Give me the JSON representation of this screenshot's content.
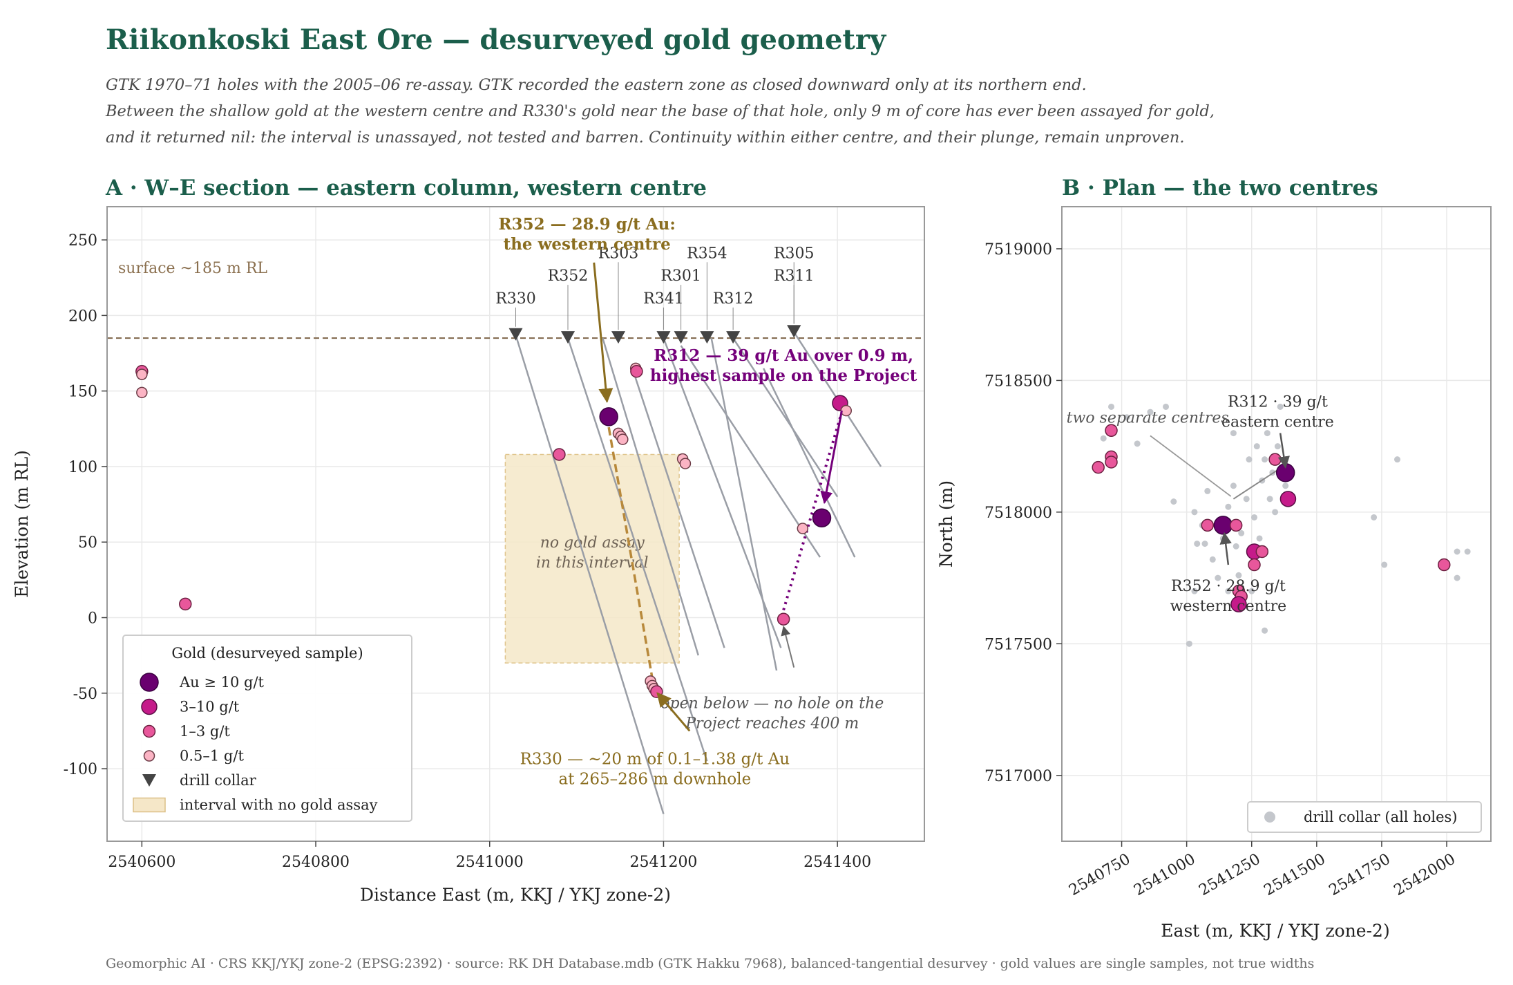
{
  "title": "Riikonkoski East Ore — desurveyed gold geometry",
  "subtitle_lines": [
    "GTK 1970–71 holes with the 2005–06 re-assay. GTK recorded the eastern zone as closed downward only at its northern end.",
    "Between the shallow gold at the western centre and R330's gold near the base of that hole, only 9 m of core has ever been assayed for gold,",
    "and it returned nil: the interval is unassayed, not tested and barren. Continuity within either centre, and their plunge, remain unproven."
  ],
  "footer": "Geomorphic AI · CRS KKJ/YKJ zone-2 (EPSG:2392) · source: RK DH Database.mdb (GTK Hakku 7968), balanced-tangential desurvey · gold values are single samples, not true widths",
  "colors": {
    "title": "#1b5e4b",
    "au_ge10": "#6a006f",
    "au_3_10": "#c51b8a",
    "au_1_3": "#e8579b",
    "au_05_1": "#fbb4c4",
    "collar": "#444444",
    "trace": "#9a9ea6",
    "western_annot": "#8a6d1f",
    "eastern_annot": "#74007a",
    "gap_fill": "#f5e7c8",
    "surface": "#7d6447",
    "grey_collar": "#c4c7cc"
  },
  "chart_data": [
    {
      "type": "scatter",
      "panel_title": "A · W–E section — eastern column, western centre",
      "xlabel": "Distance East (m, KKJ / YKJ zone-2)",
      "ylabel": "Elevation (m RL)",
      "xlim": [
        2540560,
        2541500
      ],
      "ylim": [
        -148,
        272
      ],
      "xticks": [
        2540600,
        2540800,
        2541000,
        2541200,
        2541400
      ],
      "yticks": [
        -100,
        -50,
        0,
        50,
        100,
        150,
        200,
        250
      ],
      "grid": true,
      "surface": {
        "elevation": 185,
        "label": "surface ~185 m RL"
      },
      "no_assay_box": {
        "x": [
          2541018,
          2541218
        ],
        "y": [
          -30,
          108
        ],
        "label_lines": [
          "no gold assay",
          "in this interval"
        ]
      },
      "collars": [
        {
          "hole": "R330",
          "x": 2541030,
          "elev": 187,
          "label_elev": 208
        },
        {
          "hole": "R352",
          "x": 2541090,
          "elev": 185,
          "label_elev": 223
        },
        {
          "hole": "R303",
          "x": 2541148,
          "elev": 185,
          "label_elev": 238
        },
        {
          "hole": "R341",
          "x": 2541200,
          "elev": 185,
          "label_elev": 208
        },
        {
          "hole": "R301",
          "x": 2541220,
          "elev": 185,
          "label_elev": 223
        },
        {
          "hole": "R354",
          "x": 2541250,
          "elev": 185,
          "label_elev": 238
        },
        {
          "hole": "R312",
          "x": 2541280,
          "elev": 185,
          "label_elev": 208
        },
        {
          "hole": "R305",
          "x": 2541350,
          "elev": 189,
          "label_elev": 238
        },
        {
          "hole": "R311",
          "x": 2541350,
          "elev": 189,
          "label_elev": 223
        }
      ],
      "traces": [
        [
          [
            2541030,
            187
          ],
          [
            2541200,
            -130
          ]
        ],
        [
          [
            2541090,
            185
          ],
          [
            2541250,
            -95
          ]
        ],
        [
          [
            2541130,
            185
          ],
          [
            2541240,
            -25
          ]
        ],
        [
          [
            2541167,
            160
          ],
          [
            2541270,
            -20
          ]
        ],
        [
          [
            2541200,
            185
          ],
          [
            2541335,
            -20
          ]
        ],
        [
          [
            2541220,
            180
          ],
          [
            2541380,
            40
          ]
        ],
        [
          [
            2541255,
            185
          ],
          [
            2541330,
            -35
          ]
        ],
        [
          [
            2541280,
            185
          ],
          [
            2541400,
            80
          ]
        ],
        [
          [
            2541350,
            189
          ],
          [
            2541450,
            100
          ]
        ],
        [
          [
            2541315,
            165
          ],
          [
            2541420,
            40
          ]
        ]
      ],
      "samples": [
        {
          "x": 2540600,
          "elev": 163,
          "au_class": "1–3 g/t"
        },
        {
          "x": 2540600,
          "elev": 161,
          "au_class": "0.5–1 g/t"
        },
        {
          "x": 2540600,
          "elev": 149,
          "au_class": "0.5–1 g/t"
        },
        {
          "x": 2540650,
          "elev": 9,
          "au_class": "1–3 g/t"
        },
        {
          "x": 2541080,
          "elev": 108,
          "au_class": "1–3 g/t"
        },
        {
          "x": 2541137,
          "elev": 133,
          "au_class": "Au ≥ 10 g/t"
        },
        {
          "x": 2541148,
          "elev": 122,
          "au_class": "0.5–1 g/t"
        },
        {
          "x": 2541151,
          "elev": 120,
          "au_class": "0.5–1 g/t"
        },
        {
          "x": 2541153,
          "elev": 118,
          "au_class": "0.5–1 g/t"
        },
        {
          "x": 2541168,
          "elev": 165,
          "au_class": "0.5–1 g/t"
        },
        {
          "x": 2541169,
          "elev": 163,
          "au_class": "1–3 g/t"
        },
        {
          "x": 2541222,
          "elev": 105,
          "au_class": "0.5–1 g/t"
        },
        {
          "x": 2541225,
          "elev": 102,
          "au_class": "0.5–1 g/t"
        },
        {
          "x": 2541185,
          "elev": -42,
          "au_class": "0.5–1 g/t"
        },
        {
          "x": 2541187,
          "elev": -45,
          "au_class": "0.5–1 g/t"
        },
        {
          "x": 2541189,
          "elev": -47,
          "au_class": "0.5–1 g/t"
        },
        {
          "x": 2541192,
          "elev": -49,
          "au_class": "1–3 g/t"
        },
        {
          "x": 2541360,
          "elev": 59,
          "au_class": "0.5–1 g/t"
        },
        {
          "x": 2541382,
          "elev": 66,
          "au_class": "Au ≥ 10 g/t"
        },
        {
          "x": 2541338,
          "elev": -1,
          "au_class": "1–3 g/t"
        },
        {
          "x": 2541403,
          "elev": 142,
          "au_class": "3–10 g/t"
        },
        {
          "x": 2541410,
          "elev": 137,
          "au_class": "0.5–1 g/t"
        }
      ],
      "annotations": [
        {
          "lines": [
            "R352 — 28.9 g/t Au:",
            "the western centre"
          ],
          "color": "western_annot",
          "bold": true,
          "x": 2541112,
          "elev": 257
        },
        {
          "lines": [
            "R312 — 39 g/t Au over 0.9 m,",
            "highest sample on the Project"
          ],
          "color": "eastern_annot",
          "bold": true,
          "x": 2541338,
          "elev": 170
        },
        {
          "lines": [
            "open below — no hole on the",
            "Project reaches 400 m"
          ],
          "color": "grey_italic",
          "italic": true,
          "x": 2541325,
          "elev": -60
        },
        {
          "lines": [
            "R330 — ~20 m of 0.1–1.38 g/t Au",
            "at 265–286 m downhole"
          ],
          "color": "western_annot",
          "x": 2541190,
          "elev": -97
        }
      ],
      "legend": {
        "title": "Gold (desurveyed sample)",
        "position": "lower-left",
        "entries": [
          "Au ≥ 10 g/t",
          "3–10 g/t",
          "1–3 g/t",
          "0.5–1 g/t",
          "drill collar",
          "interval with no gold assay"
        ]
      }
    },
    {
      "type": "scatter",
      "panel_title": "B · Plan — the two centres",
      "xlabel": "East (m, KKJ / YKJ zone-2)",
      "ylabel": "North (m)",
      "xlim": [
        2540520,
        2542170
      ],
      "ylim": [
        7516750,
        7519160
      ],
      "xticks": [
        2540750,
        2541000,
        2541250,
        2541500,
        2541750,
        2542000
      ],
      "yticks": [
        7517000,
        7517500,
        7518000,
        7518500,
        7519000
      ],
      "grid": true,
      "grey_collars": [
        [
          2540680,
          7518280
        ],
        [
          2540710,
          7518400
        ],
        [
          2540720,
          7518320
        ],
        [
          2540770,
          7518360
        ],
        [
          2540810,
          7518260
        ],
        [
          2540860,
          7518380
        ],
        [
          2540920,
          7518400
        ],
        [
          2540950,
          7518040
        ],
        [
          2541030,
          7518000
        ],
        [
          2541060,
          7517950
        ],
        [
          2541080,
          7518080
        ],
        [
          2541070,
          7517880
        ],
        [
          2541100,
          7517820
        ],
        [
          2541120,
          7517750
        ],
        [
          2541140,
          7517900
        ],
        [
          2541160,
          7518020
        ],
        [
          2541180,
          7518100
        ],
        [
          2541190,
          7517870
        ],
        [
          2541200,
          7517760
        ],
        [
          2541210,
          7517920
        ],
        [
          2541230,
          7518050
        ],
        [
          2541240,
          7518200
        ],
        [
          2541250,
          7517700
        ],
        [
          2541260,
          7517980
        ],
        [
          2541270,
          7518250
        ],
        [
          2541280,
          7517900
        ],
        [
          2541290,
          7518120
        ],
        [
          2541300,
          7518200
        ],
        [
          2541310,
          7518300
        ],
        [
          2541320,
          7518050
        ],
        [
          2541330,
          7518150
        ],
        [
          2541340,
          7518000
        ],
        [
          2541350,
          7518250
        ],
        [
          2541360,
          7518400
        ],
        [
          2541380,
          7518100
        ],
        [
          2541400,
          7518050
        ],
        [
          2541030,
          7517700
        ],
        [
          2541160,
          7517700
        ],
        [
          2541300,
          7517550
        ],
        [
          2541010,
          7517500
        ],
        [
          2541720,
          7517980
        ],
        [
          2541810,
          7518200
        ],
        [
          2541760,
          7517800
        ],
        [
          2542040,
          7517850
        ],
        [
          2542080,
          7517850
        ],
        [
          2542040,
          7517750
        ],
        [
          2541040,
          7517880
        ],
        [
          2541180,
          7518300
        ]
      ],
      "samples": [
        {
          "x": 2540710,
          "y": 7518310,
          "au_class": "1–3 g/t"
        },
        {
          "x": 2540710,
          "y": 7518210,
          "au_class": "1–3 g/t"
        },
        {
          "x": 2540710,
          "y": 7518190,
          "au_class": "1–3 g/t"
        },
        {
          "x": 2540660,
          "y": 7518170,
          "au_class": "1–3 g/t"
        },
        {
          "x": 2541080,
          "y": 7517950,
          "au_class": "1–3 g/t"
        },
        {
          "x": 2541140,
          "y": 7517950,
          "au_class": "Au ≥ 10 g/t"
        },
        {
          "x": 2541190,
          "y": 7517950,
          "au_class": "1–3 g/t"
        },
        {
          "x": 2541260,
          "y": 7517850,
          "au_class": "3–10 g/t"
        },
        {
          "x": 2541290,
          "y": 7517850,
          "au_class": "1–3 g/t"
        },
        {
          "x": 2541260,
          "y": 7517800,
          "au_class": "1–3 g/t"
        },
        {
          "x": 2541200,
          "y": 7517700,
          "au_class": "1–3 g/t"
        },
        {
          "x": 2541210,
          "y": 7517680,
          "au_class": "1–3 g/t"
        },
        {
          "x": 2541200,
          "y": 7517650,
          "au_class": "3–10 g/t"
        },
        {
          "x": 2541340,
          "y": 7518200,
          "au_class": "1–3 g/t"
        },
        {
          "x": 2541380,
          "y": 7518150,
          "au_class": "Au ≥ 10 g/t"
        },
        {
          "x": 2541390,
          "y": 7518050,
          "au_class": "3–10 g/t"
        },
        {
          "x": 2541990,
          "y": 7517800,
          "au_class": "1–3 g/t"
        }
      ],
      "annotations": [
        {
          "lines": [
            "R312 · 39 g/t",
            "eastern centre"
          ],
          "x": 2541350,
          "y": 7518400
        },
        {
          "lines": [
            "R352 · 28.9 g/t",
            "western centre"
          ],
          "x": 2541160,
          "y": 7517700
        },
        {
          "lines": [
            "two separate centres"
          ],
          "italic": true,
          "x": 2540850,
          "y": 7518340
        }
      ],
      "legend": {
        "position": "lower-right",
        "entries": [
          "drill collar (all holes)"
        ]
      }
    }
  ]
}
